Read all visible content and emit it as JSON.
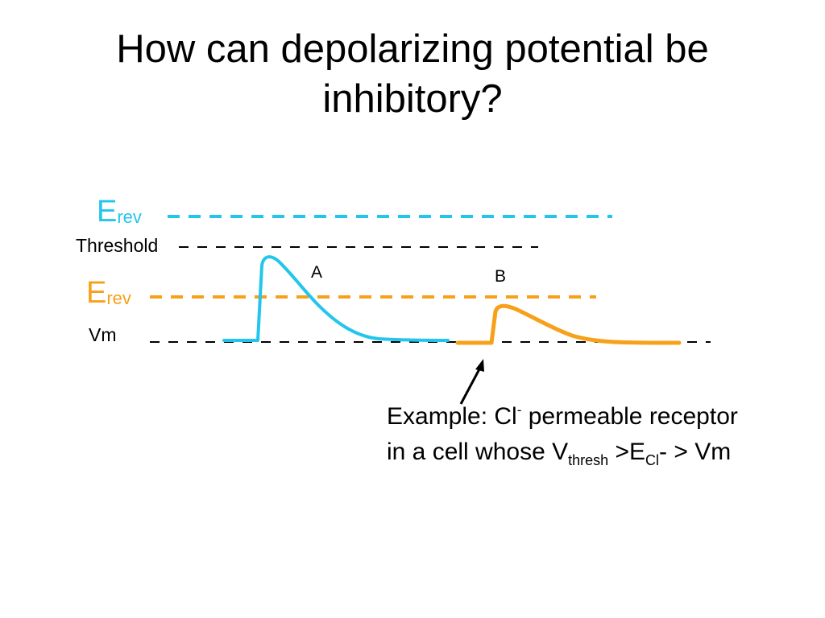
{
  "title": "How can depolarizing potential be inhibitory?",
  "labels": {
    "erev_main": "E",
    "erev_sub": "rev",
    "threshold": "Threshold",
    "vm": "Vm",
    "pulse_a": "A",
    "pulse_b": "B"
  },
  "note": {
    "line1_pre": "Example: Cl",
    "line1_sup": "-",
    "line1_post": " permeable receptor",
    "line2_pre": "in a cell whose V",
    "line2_sub1": "thresh",
    "line2_mid": " >E",
    "line2_sub2": "Cl",
    "line2_post": "- > Vm"
  },
  "colors": {
    "cyan": "#22c6ec",
    "orange": "#f7a11a",
    "black": "#000000"
  }
}
